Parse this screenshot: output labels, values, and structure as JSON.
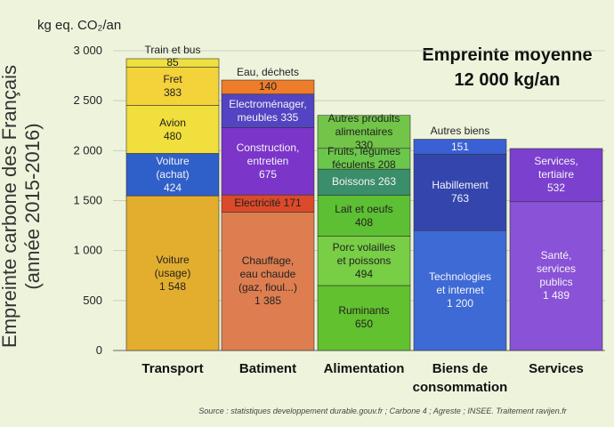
{
  "y_unit": "kg eq. CO₂/an",
  "ylabel": [
    "Empreinte carbone des Français",
    "(année 2015-2016)"
  ],
  "headline": [
    "Empreinte moyenne",
    "12 000 kg/an"
  ],
  "source": "Source : statistiques developpement durable.gouv.fr ; Carbone 4 ; Agreste ; INSEE. Traitement ravijen.fr",
  "chart_data": {
    "type": "bar",
    "stacked": true,
    "ylim": [
      0,
      3000
    ],
    "yticks": [
      "0",
      "500",
      "1 000",
      "1 500",
      "2 000",
      "2 500",
      "3 000"
    ],
    "grid": true,
    "categories": [
      {
        "name": "Transport",
        "segments": [
          {
            "value": 1548,
            "lines": [
              "Voiture",
              "(usage)",
              "1 548"
            ],
            "color": "#e3ae2e"
          },
          {
            "value": 424,
            "lines": [
              "Voiture",
              "(achat)",
              "424"
            ],
            "color": "#2f5fc8"
          },
          {
            "value": 480,
            "lines": [
              "Avion",
              "480"
            ],
            "color": "#f0df3c"
          },
          {
            "value": 383,
            "lines": [
              "Fret",
              "383"
            ],
            "color": "#f4d23a"
          },
          {
            "value": 85,
            "lines": [
              "85"
            ],
            "color": "#eee040",
            "above": "Train et bus"
          }
        ]
      },
      {
        "name": "Batiment",
        "segments": [
          {
            "value": 1385,
            "lines": [
              "Chauffage,",
              "eau chaude",
              "(gaz, fioul...)",
              "1 385"
            ],
            "color": "#de7e50"
          },
          {
            "value": 171,
            "lines": [
              "Electricité 171"
            ],
            "color": "#db4a2a"
          },
          {
            "value": 675,
            "lines": [
              "Construction,",
              "entretien",
              "675"
            ],
            "color": "#7b35c9"
          },
          {
            "value": 335,
            "lines": [
              "Electroménager,",
              "meubles 335"
            ],
            "color": "#5244c2"
          },
          {
            "value": 140,
            "lines": [
              "140"
            ],
            "color": "#ee7c2a",
            "above": "Eau, déchets"
          }
        ]
      },
      {
        "name": "Alimentation",
        "segments": [
          {
            "value": 650,
            "lines": [
              "Ruminants",
              "650"
            ],
            "color": "#62c12e"
          },
          {
            "value": 494,
            "lines": [
              "Porc volailles",
              "et poissons",
              "494"
            ],
            "color": "#78ce45"
          },
          {
            "value": 408,
            "lines": [
              "Lait et oeufs",
              "408"
            ],
            "color": "#5dbf33"
          },
          {
            "value": 263,
            "lines": [
              "Boissons 263"
            ],
            "color": "#3a8e6a"
          },
          {
            "value": 208,
            "lines": [
              "Fruits, légumes",
              "féculents 208"
            ],
            "color": "#6bc74b"
          },
          {
            "value": 330,
            "lines": [
              "Autres produits",
              "alimentaires",
              "330"
            ],
            "color": "#72c548"
          }
        ]
      },
      {
        "name": "Biens de consommation",
        "name_lines": [
          "Biens de",
          "consommation"
        ],
        "segments": [
          {
            "value": 1200,
            "lines": [
              "Technologies",
              "et internet",
              "1 200"
            ],
            "color": "#3e6ad6"
          },
          {
            "value": 763,
            "lines": [
              "Habillement",
              "763"
            ],
            "color": "#3446ad"
          },
          {
            "value": 151,
            "lines": [
              "151"
            ],
            "color": "#3a60d4",
            "above": "Autres biens"
          }
        ]
      },
      {
        "name": "Services",
        "segments": [
          {
            "value": 1489,
            "lines": [
              "Santé,",
              "services",
              "publics",
              "1 489"
            ],
            "color": "#8a52d6"
          },
          {
            "value": 532,
            "lines": [
              "Services,",
              "tertiaire",
              "532"
            ],
            "color": "#7c40cf"
          }
        ]
      }
    ]
  }
}
